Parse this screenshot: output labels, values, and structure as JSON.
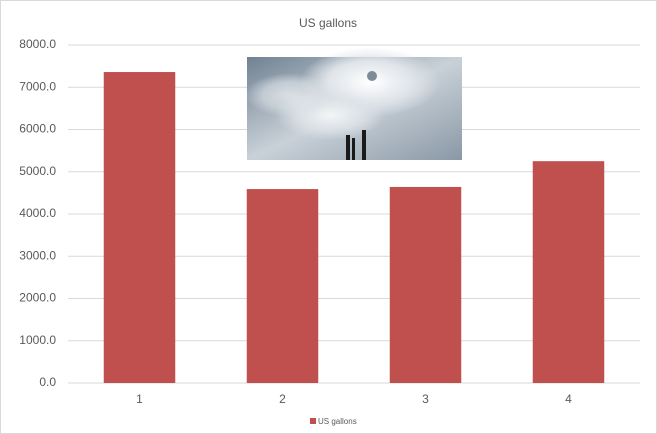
{
  "chart_data": {
    "type": "bar",
    "title": "US gallons",
    "categories": [
      "1",
      "2",
      "3",
      "4"
    ],
    "series": [
      {
        "name": "US gallons",
        "color": "#c0504d",
        "values": [
          7360,
          4590,
          4640,
          5250
        ]
      }
    ],
    "ylim": [
      0,
      8000
    ],
    "yticks": [
      {
        "value": 0,
        "label": "0.0"
      },
      {
        "value": 1000,
        "label": "1000.0"
      },
      {
        "value": 2000,
        "label": "2000.0"
      },
      {
        "value": 3000,
        "label": "3000.0"
      },
      {
        "value": 4000,
        "label": "4000.0"
      },
      {
        "value": 5000,
        "label": "5000.0"
      },
      {
        "value": 6000,
        "label": "6000.0"
      },
      {
        "value": 7000,
        "label": "7000.0"
      },
      {
        "value": 8000,
        "label": "8000.0"
      }
    ],
    "grid": true,
    "legend": "bottom"
  }
}
